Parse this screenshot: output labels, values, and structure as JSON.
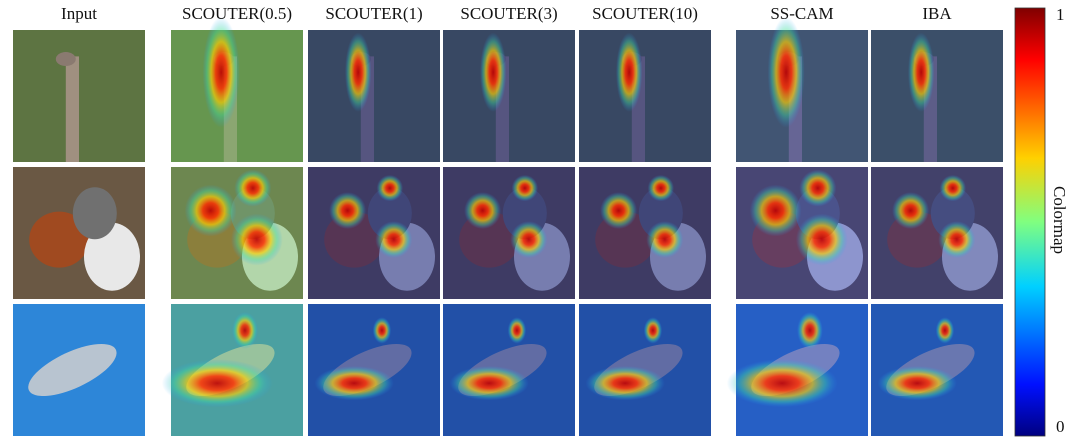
{
  "columns": [
    "Input",
    "SCOUTER(0.5)",
    "SCOUTER(1)",
    "SCOUTER(3)",
    "SCOUTER(10)",
    "SS-CAM",
    "IBA"
  ],
  "colorbar": {
    "max": 1,
    "min": 0,
    "title": "Colormap"
  }
}
